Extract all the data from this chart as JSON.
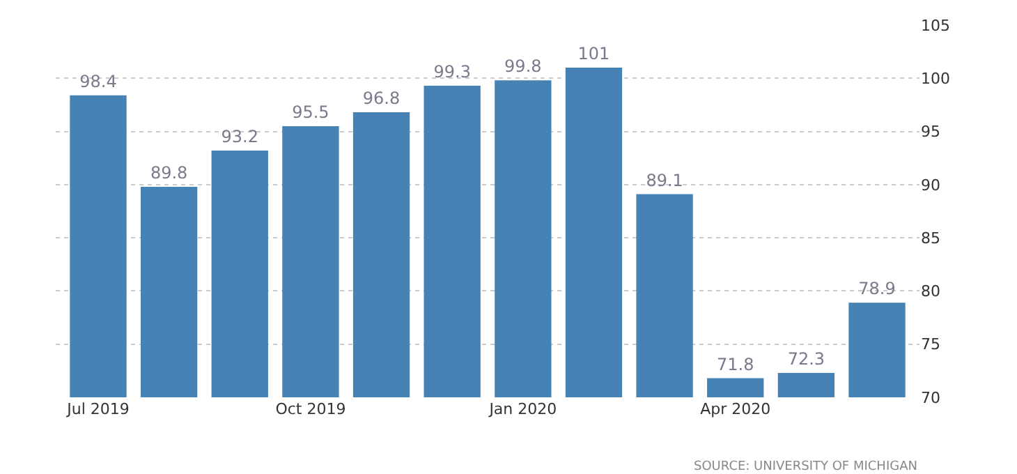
{
  "chart_data": {
    "type": "bar",
    "categories": [
      "Jul 2019",
      null,
      null,
      "Oct 2019",
      null,
      null,
      "Jan 2020",
      null,
      null,
      "Apr 2020",
      null,
      null
    ],
    "series": [
      {
        "color": "#4682b4",
        "values": [
          98.4,
          89.8,
          93.2,
          95.5,
          96.8,
          99.3,
          99.8,
          101,
          89.1,
          71.8,
          72.3,
          78.9
        ]
      }
    ],
    "ylim": [
      70,
      105
    ],
    "yticks": [
      70,
      75,
      80,
      85,
      90,
      95,
      100,
      105
    ],
    "grid": "y",
    "legend": false,
    "data_labels": true,
    "annotations": [
      "SOURCE: UNIVERSITY OF MICHIGAN"
    ]
  }
}
